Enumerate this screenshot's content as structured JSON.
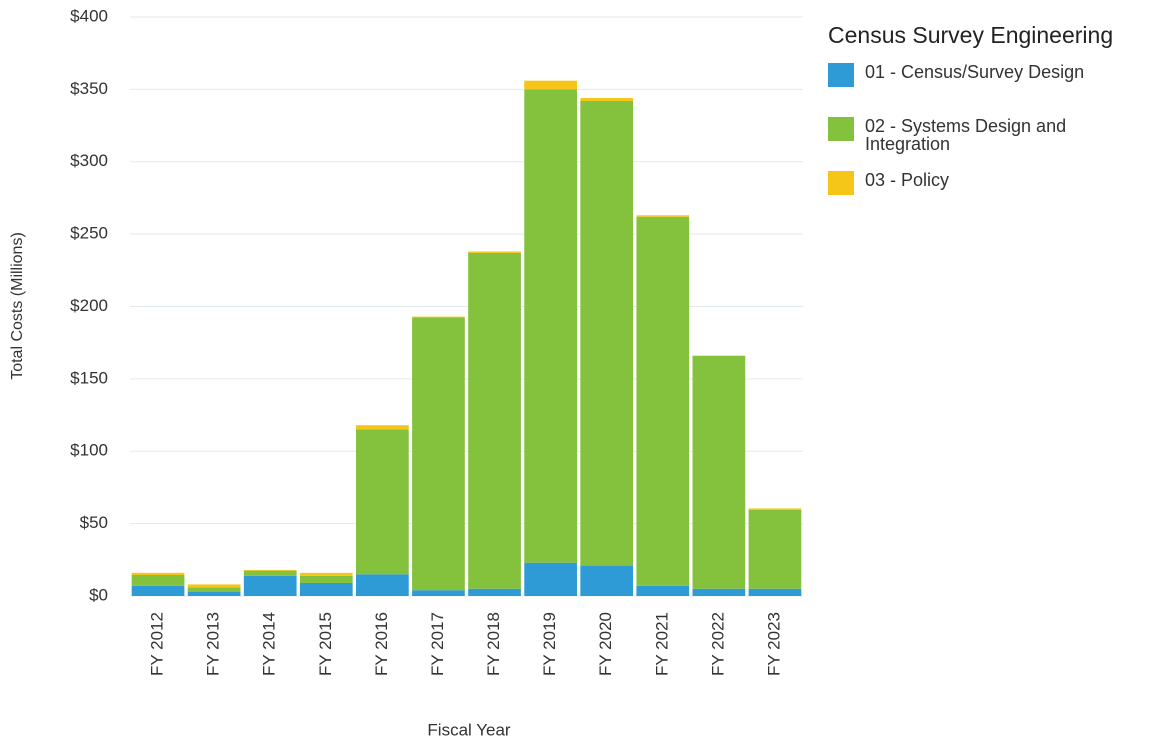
{
  "chart_data": {
    "type": "stacked_bar",
    "legend_title": "Census Survey Engineering",
    "x_label": "Fiscal Year",
    "y_label": "Total Costs (Millions)",
    "categories": [
      "FY 2012",
      "FY 2013",
      "FY 2014",
      "FY 2015",
      "FY 2016",
      "FY 2017",
      "FY 2018",
      "FY 2019",
      "FY 2020",
      "FY 2021",
      "FY 2022",
      "FY 2023"
    ],
    "series": [
      {
        "name": "01 - Census/Survey Design",
        "color": "#2e9bd6",
        "values": [
          7,
          3,
          14,
          9,
          15,
          4,
          5,
          23,
          21,
          7,
          5,
          5
        ]
      },
      {
        "name": "02 - Systems Design and Integration",
        "color": "#84c13d",
        "values": [
          7.5,
          3,
          3.5,
          5,
          100,
          188.5,
          232,
          327,
          321,
          255,
          161,
          54.5
        ]
      },
      {
        "name": "03 - Policy",
        "color": "#f5c518",
        "values": [
          1.5,
          2,
          0.5,
          2,
          3,
          0.5,
          1,
          6,
          2,
          1,
          0,
          1
        ]
      }
    ],
    "ylim": [
      0,
      400
    ],
    "yticks": [
      {
        "value": 0,
        "label": "$0"
      },
      {
        "value": 50,
        "label": "$50"
      },
      {
        "value": 100,
        "label": "$100"
      },
      {
        "value": 150,
        "label": "$150"
      },
      {
        "value": 200,
        "label": "$200"
      },
      {
        "value": 250,
        "label": "$250"
      },
      {
        "value": 300,
        "label": "$300"
      },
      {
        "value": 350,
        "label": "$350"
      },
      {
        "value": 400,
        "label": "$400"
      }
    ],
    "grid": true,
    "legend": "right"
  }
}
